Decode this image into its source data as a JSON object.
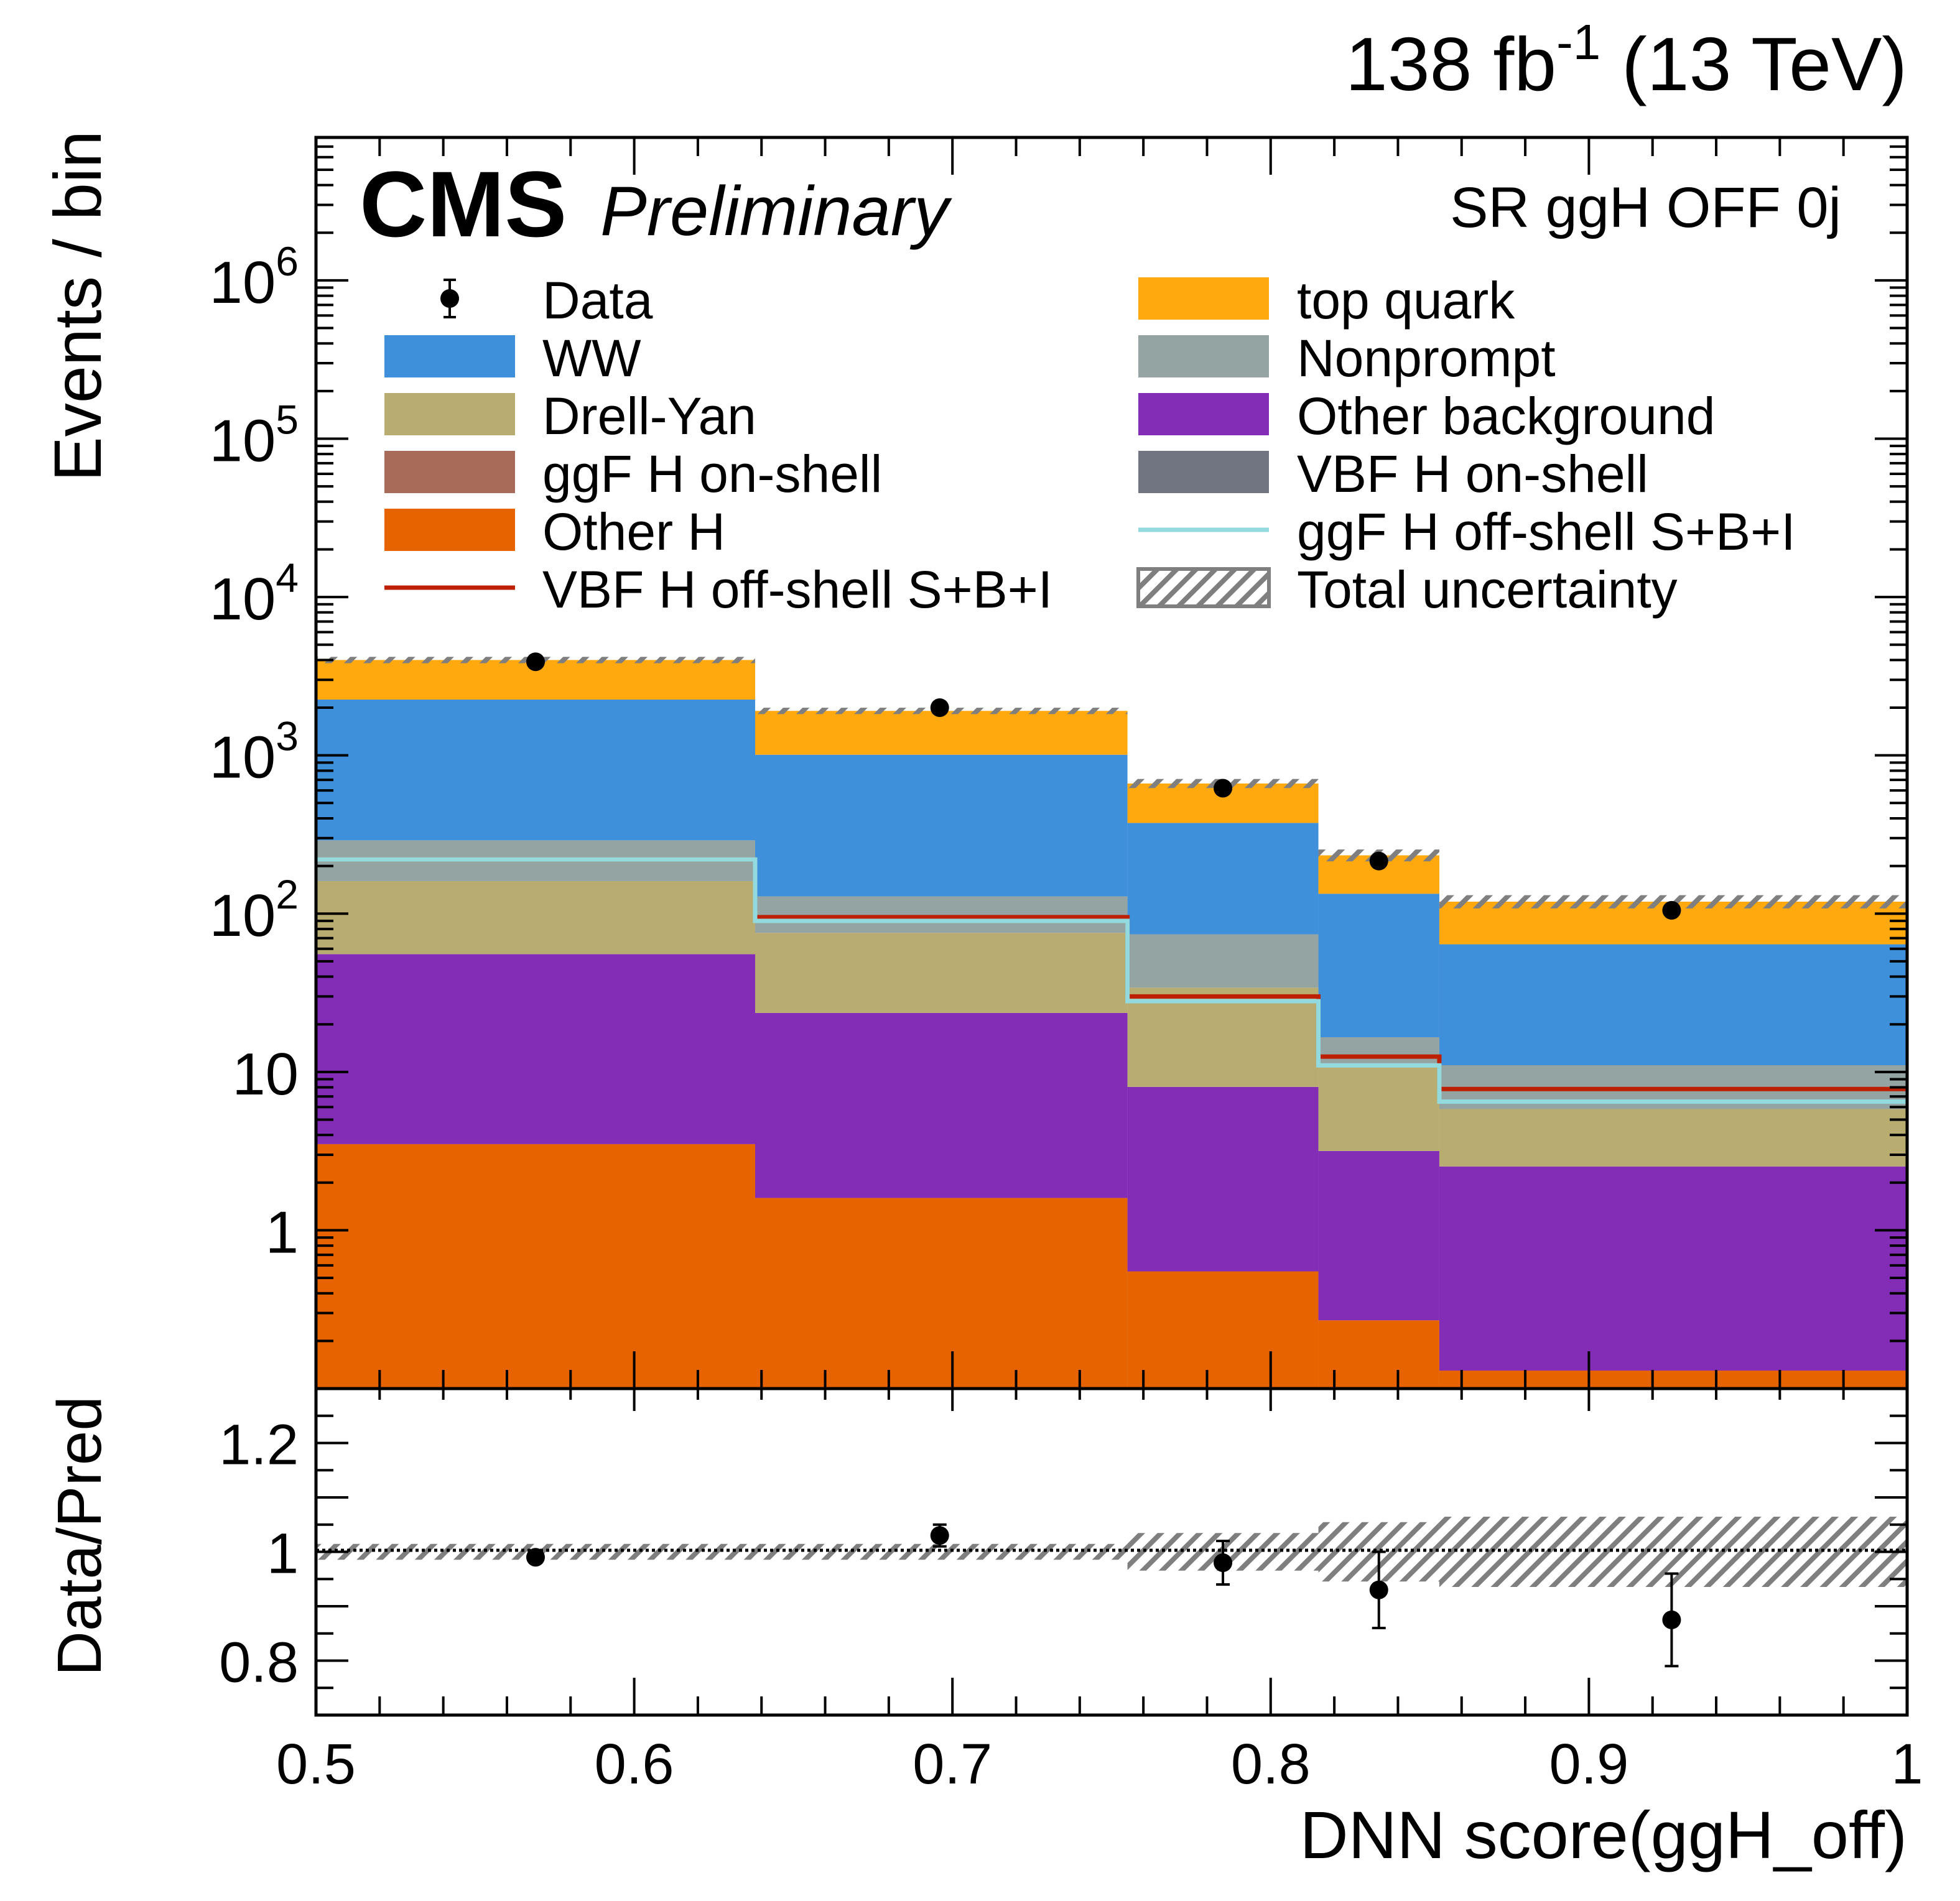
{
  "header": {
    "lumi_value": "138 fb",
    "lumi_exp": "-1",
    "energy": " (13 TeV)",
    "cms": "CMS",
    "preliminary": "Preliminary",
    "region": "SR ggH OFF 0j"
  },
  "colors": {
    "data": "#000000",
    "WW": "#3f90da",
    "drell_yan": "#b9ac70",
    "ggf_onshell": "#a96b59",
    "other_h": "#e76300",
    "top": "#ffa90e",
    "nonprompt": "#94a4a2",
    "other_bkg": "#832db6",
    "vbf_onshell": "#717581",
    "vbf_offshell_line": "#bd1f01",
    "ggf_offshell_line": "#92dadd",
    "uncertainty": "#7f7f7f"
  },
  "chart_data": {
    "type": "bar",
    "stacked": true,
    "y_scale": "log",
    "xlabel": "DNN score(ggH_off)",
    "ylabel": "Events / bin",
    "ratio_ylabel": "Data/Pred",
    "xlim": [
      0.5,
      1.0
    ],
    "ylim": [
      0.1,
      8000000
    ],
    "ratio_ylim": [
      0.7,
      1.3
    ],
    "x_ticks": [
      "0.5",
      "0.6",
      "0.7",
      "0.8",
      "0.9",
      "1"
    ],
    "y_ticks": [
      {
        "base": "1",
        "exp": ""
      },
      {
        "base": "10",
        "exp": ""
      },
      {
        "base": "10",
        "exp": "2"
      },
      {
        "base": "10",
        "exp": "3"
      },
      {
        "base": "10",
        "exp": "4"
      },
      {
        "base": "10",
        "exp": "5"
      },
      {
        "base": "10",
        "exp": "6"
      }
    ],
    "ratio_y_ticks": [
      "0.8",
      "1",
      "1.2"
    ],
    "bin_edges": [
      0.5,
      0.638,
      0.755,
      0.815,
      0.853,
      1.0
    ],
    "stack": [
      {
        "name": "Other H",
        "color_key": "other_h",
        "values": [
          3.5,
          1.6,
          0.55,
          0.27,
          0.13
        ]
      },
      {
        "name": "Other background",
        "color_key": "other_bkg",
        "values": [
          52,
          22,
          7.5,
          2.9,
          2.4
        ]
      },
      {
        "name": "Drell-Yan",
        "color_key": "drell_yan",
        "values": [
          105,
          52,
          26,
          7.6,
          3.3
        ]
      },
      {
        "name": "Nonprompt",
        "color_key": "nonprompt",
        "values": [
          130,
          53,
          40,
          5.8,
          5.2
        ]
      },
      {
        "name": "ggF H on-shell",
        "color_key": "ggf_onshell",
        "values": [
          0,
          0,
          0,
          0,
          0
        ]
      },
      {
        "name": "VBF H on-shell",
        "color_key": "vbf_onshell",
        "values": [
          0,
          0,
          0,
          0,
          0
        ]
      },
      {
        "name": "WW",
        "color_key": "WW",
        "values": [
          1960,
          880,
          300,
          117,
          53
        ]
      },
      {
        "name": "top quark",
        "color_key": "top",
        "values": [
          1750,
          900,
          290,
          100,
          55
        ]
      }
    ],
    "lines": [
      {
        "name": "VBF H off-shell S+B+I",
        "color_key": "vbf_offshell_line",
        "values": [
          220,
          95,
          30,
          12.5,
          7.8
        ]
      },
      {
        "name": "ggF H off-shell S+B+I",
        "color_key": "ggf_offshell_line",
        "values": [
          220,
          90,
          28,
          11,
          6.5
        ]
      }
    ],
    "data_points": {
      "name": "Data",
      "x": [
        0.569,
        0.696,
        0.785,
        0.834,
        0.926
      ],
      "y": [
        3900,
        2000,
        620,
        215,
        105
      ]
    },
    "ratio": {
      "values": [
        0.99,
        1.03,
        0.98,
        0.93,
        0.875
      ],
      "err_low": [
        0.01,
        0.02,
        0.04,
        0.07,
        0.085
      ],
      "err_high": [
        0.01,
        0.02,
        0.04,
        0.07,
        0.085
      ],
      "uncertainty": [
        0.01,
        0.01,
        0.03,
        0.05,
        0.06
      ]
    },
    "legend": {
      "position": "top",
      "left": [
        {
          "label": "Data",
          "kind": "marker",
          "color_key": "data"
        },
        {
          "label": "WW",
          "kind": "box",
          "color_key": "WW"
        },
        {
          "label": "Drell-Yan",
          "kind": "box",
          "color_key": "drell_yan"
        },
        {
          "label": "ggF H on-shell",
          "kind": "box",
          "color_key": "ggf_onshell"
        },
        {
          "label": "Other H",
          "kind": "box",
          "color_key": "other_h"
        },
        {
          "label": "VBF H off-shell S+B+I",
          "kind": "line",
          "color_key": "vbf_offshell_line"
        }
      ],
      "right": [
        {
          "label": "top quark",
          "kind": "box",
          "color_key": "top"
        },
        {
          "label": "Nonprompt",
          "kind": "box",
          "color_key": "nonprompt"
        },
        {
          "label": "Other background",
          "kind": "box",
          "color_key": "other_bkg"
        },
        {
          "label": "VBF H on-shell",
          "kind": "box",
          "color_key": "vbf_onshell"
        },
        {
          "label": "ggF H off-shell S+B+I",
          "kind": "line",
          "color_key": "ggf_offshell_line"
        },
        {
          "label": "Total uncertainty",
          "kind": "hatch",
          "color_key": "uncertainty"
        }
      ]
    }
  }
}
